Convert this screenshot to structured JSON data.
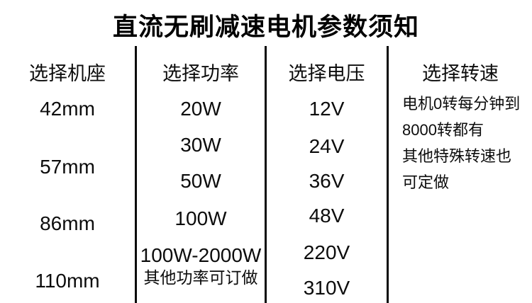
{
  "title": "直流无刷减速电机参数须知",
  "columns": {
    "frame": {
      "header": "选择机座",
      "options": [
        "42mm",
        "57mm",
        "86mm",
        "110mm"
      ]
    },
    "power": {
      "header": "选择功率",
      "options": [
        "20W",
        "30W",
        "50W",
        "100W",
        "100W-2000W",
        "其他功率可订做"
      ]
    },
    "voltage": {
      "header": "选择电压",
      "options": [
        "12V",
        "24V",
        "36V",
        "48V",
        "220V",
        "310V"
      ]
    },
    "speed": {
      "header": "选择转速",
      "notes": [
        "电机0转每分钟到",
        "8000转都有",
        "其他特殊转速也",
        "可定做"
      ]
    }
  },
  "colors": {
    "background": "#ffffff",
    "text": "#000000",
    "divider": "#0a0a0a"
  }
}
